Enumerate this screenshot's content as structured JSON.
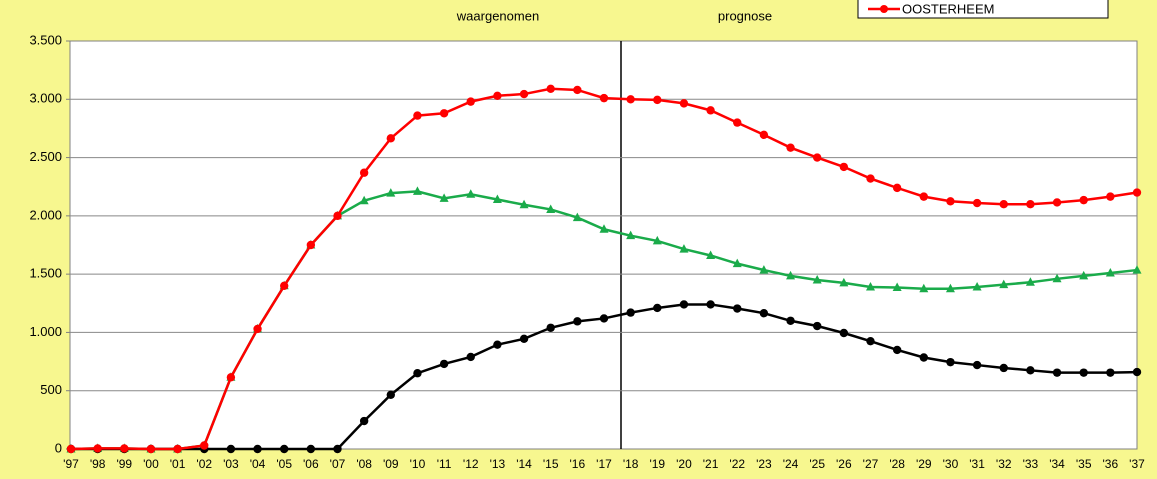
{
  "chart_data": {
    "type": "line",
    "annotations": [
      "waargenomen",
      "prognose"
    ],
    "categories": [
      "'97",
      "'98",
      "'99",
      "'00",
      "'01",
      "'02",
      "'03",
      "'04",
      "'05",
      "'06",
      "'07",
      "'08",
      "'09",
      "'10",
      "'11",
      "'12",
      "'13",
      "'14",
      "'15",
      "'16",
      "'17",
      "'18",
      "'19",
      "'20",
      "'21",
      "'22",
      "'23",
      "'24",
      "'25",
      "'26",
      "'27",
      "'28",
      "'29",
      "'30",
      "'31",
      "'32",
      "'33",
      "'34",
      "'35",
      "'36",
      "'37"
    ],
    "series": [
      {
        "color": "#1aab4a",
        "marker": "triangle",
        "values": [
          0,
          5,
          5,
          0,
          0,
          30,
          615,
          1030,
          1400,
          1750,
          2000,
          2130,
          2195,
          2210,
          2150,
          2185,
          2140,
          2095,
          2055,
          1985,
          1885,
          1830,
          1785,
          1715,
          1660,
          1590,
          1535,
          1485,
          1450,
          1425,
          1390,
          1385,
          1375,
          1375,
          1390,
          1410,
          1430,
          1460,
          1485,
          1510,
          1535
        ]
      },
      {
        "color": "#000000",
        "marker": "circle",
        "values": [
          0,
          0,
          0,
          0,
          0,
          0,
          0,
          0,
          0,
          0,
          0,
          240,
          465,
          650,
          730,
          790,
          895,
          945,
          1040,
          1095,
          1120,
          1170,
          1210,
          1240,
          1240,
          1205,
          1165,
          1100,
          1055,
          995,
          925,
          850,
          785,
          745,
          720,
          695,
          675,
          655,
          655,
          655,
          660
        ]
      },
      {
        "name": "OOSTERHEEM",
        "color": "#ff0000",
        "marker": "circle",
        "values": [
          0,
          5,
          5,
          0,
          0,
          30,
          615,
          1030,
          1400,
          1750,
          2000,
          2370,
          2665,
          2860,
          2880,
          2980,
          3030,
          3045,
          3090,
          3080,
          3010,
          3000,
          2995,
          2965,
          2905,
          2800,
          2695,
          2585,
          2500,
          2420,
          2320,
          2240,
          2165,
          2125,
          2110,
          2100,
          2100,
          2115,
          2135,
          2165,
          2200
        ]
      }
    ],
    "ylim": [
      0,
      3500
    ],
    "yticks": [
      0,
      {
        "value": 500,
        "label": "500"
      },
      {
        "value": 1000,
        "label": "1.000"
      },
      {
        "value": 1500,
        "label": "1.500"
      },
      {
        "value": 2000,
        "label": "2.000"
      },
      {
        "value": 2500,
        "label": "2.500"
      },
      {
        "value": 3000,
        "label": "3.000"
      },
      {
        "value": 3500,
        "label": "3.500"
      }
    ],
    "grid": true,
    "legend": "top-right"
  }
}
